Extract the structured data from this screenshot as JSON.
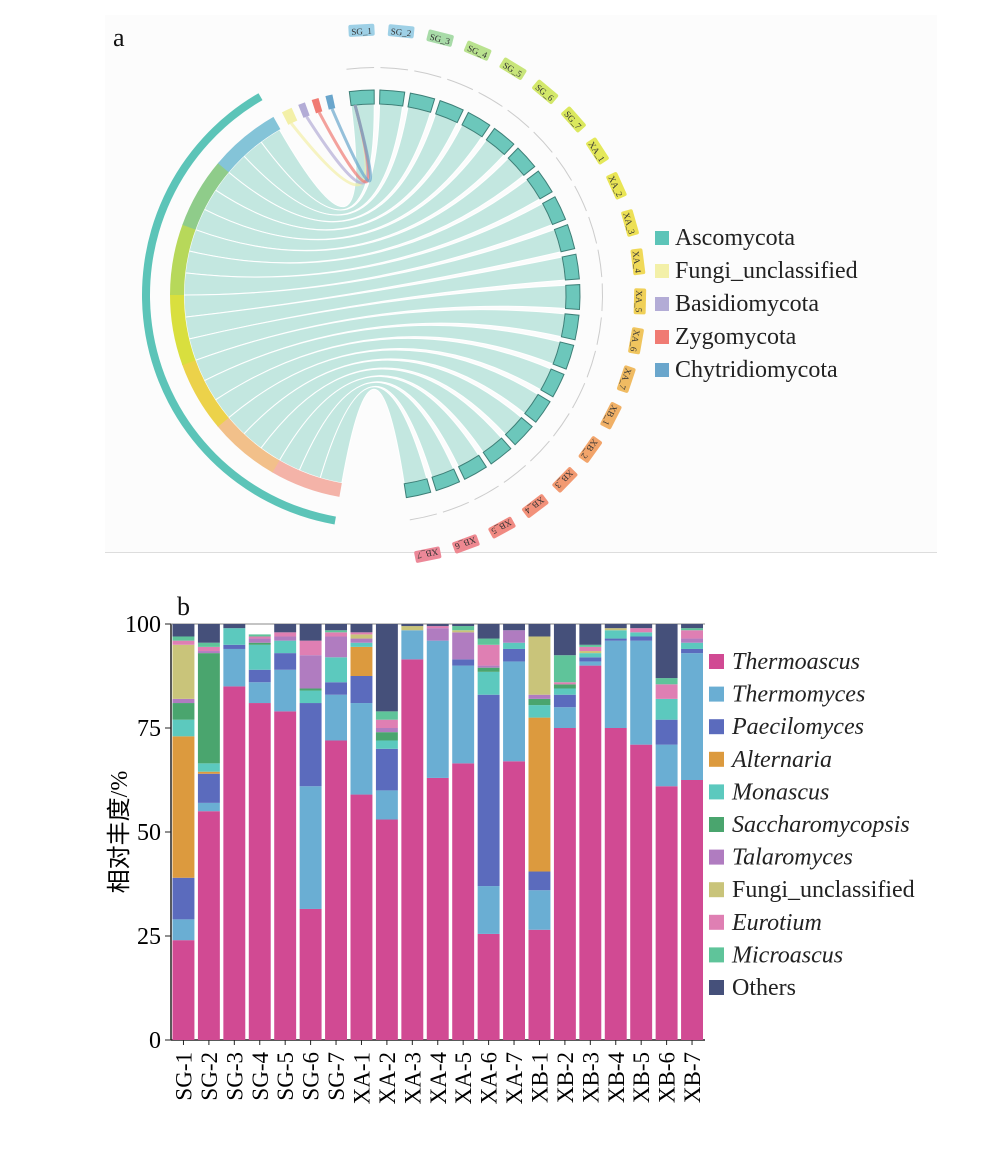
{
  "panel_a": {
    "label": "a",
    "samples": [
      "SG_1",
      "SG_2",
      "SG_3",
      "SG_4",
      "SG_5",
      "SG_6",
      "SG_7",
      "XA_1",
      "XA_2",
      "XA_3",
      "XA_4",
      "XA_5",
      "XA_6",
      "XA_7",
      "XB_1",
      "XB_2",
      "XB_3",
      "XB_4",
      "XB_5",
      "XB_6",
      "XB_7"
    ],
    "legend": [
      {
        "name": "Ascomycota",
        "color": "#5cc4b8"
      },
      {
        "name": "Fungi_unclassified",
        "color": "#f3f0a8"
      },
      {
        "name": "Basidiomycota",
        "color": "#b3acd6"
      },
      {
        "name": "Zygomycota",
        "color": "#f07b73"
      },
      {
        "name": "Chytridiomycota",
        "color": "#6aa6cc"
      }
    ]
  },
  "chart_data": {
    "type": "bar",
    "stacked": true,
    "panel_label": "b",
    "ylabel": "相对丰度/%",
    "ylim": [
      0,
      100
    ],
    "yticks": [
      0,
      25,
      50,
      75,
      100
    ],
    "legend_placement": "right",
    "categories": [
      "SG-1",
      "SG-2",
      "SG-3",
      "SG-4",
      "SG-5",
      "SG-6",
      "SG-7",
      "XA-1",
      "XA-2",
      "XA-3",
      "XA-4",
      "XA-5",
      "XA-6",
      "XA-7",
      "XB-1",
      "XB-2",
      "XB-3",
      "XB-4",
      "XB-5",
      "XB-6",
      "XB-7"
    ],
    "series": [
      {
        "name": "Thermoascus",
        "italic": true,
        "color": "#d14a93",
        "values": [
          24,
          55,
          85,
          81,
          79,
          31.5,
          72,
          59,
          53,
          91.5,
          63,
          66.5,
          25.5,
          67,
          26.5,
          75,
          90,
          75,
          71,
          61,
          62.5
        ]
      },
      {
        "name": "Thermomyces",
        "italic": true,
        "color": "#6aaed3",
        "values": [
          5,
          2,
          9,
          5,
          10,
          29.5,
          11,
          22,
          7,
          7,
          33,
          23.5,
          11.5,
          24,
          9.5,
          5,
          1,
          21,
          25,
          10,
          30.5
        ]
      },
      {
        "name": "Paecilomyces",
        "italic": true,
        "color": "#5b6bbd",
        "values": [
          10,
          7,
          1,
          3,
          4,
          20,
          3,
          6.5,
          10,
          0,
          0,
          1.5,
          46,
          3,
          4.5,
          3,
          1,
          0.5,
          1,
          6,
          1
        ]
      },
      {
        "name": "Alternaria",
        "italic": true,
        "color": "#dc9a3e",
        "values": [
          34,
          0.5,
          0,
          0,
          0,
          0,
          0,
          7,
          0,
          0,
          0,
          0,
          0,
          0,
          37,
          0,
          0,
          0,
          0,
          0,
          0
        ]
      },
      {
        "name": "Monascus",
        "italic": true,
        "color": "#5cc9be",
        "values": [
          4,
          2,
          4,
          6,
          3,
          3,
          6,
          1,
          2,
          0,
          0,
          0,
          5.5,
          1.5,
          3,
          1.5,
          1,
          2,
          1,
          5,
          1.5
        ]
      },
      {
        "name": "Saccharomycopsis",
        "italic": true,
        "color": "#4aa56e",
        "values": [
          4,
          26.5,
          0,
          0.5,
          0,
          0.5,
          0,
          0,
          2,
          0,
          0,
          0,
          1,
          0,
          1.5,
          1,
          0,
          0,
          0,
          0,
          0
        ]
      },
      {
        "name": "Talaromyces",
        "italic": true,
        "color": "#b07cc0",
        "values": [
          1,
          0.5,
          0,
          1,
          1,
          8,
          5,
          1,
          1,
          0,
          3,
          6.5,
          0.5,
          3,
          1,
          0,
          0,
          0,
          0,
          0,
          1
        ]
      },
      {
        "name": "Fungi_unclassified",
        "italic": false,
        "color": "#c9c47a",
        "values": [
          13,
          0,
          0,
          0,
          0,
          0,
          0,
          1,
          0,
          1,
          0,
          0.5,
          0,
          0,
          14,
          0,
          0.5,
          0.5,
          0,
          0,
          0
        ]
      },
      {
        "name": "Eurotium",
        "italic": true,
        "color": "#df7fb3",
        "values": [
          1,
          1,
          0,
          0.5,
          1,
          3.5,
          1,
          0.5,
          2,
          0,
          0.5,
          0,
          5,
          0,
          0,
          0.5,
          1,
          0,
          1,
          3.5,
          2
        ]
      },
      {
        "name": "Microascus",
        "italic": true,
        "color": "#5fc49a",
        "values": [
          1,
          1,
          0,
          0.5,
          0,
          0,
          0.5,
          0,
          2,
          0,
          0,
          1,
          1.5,
          0,
          0,
          6.5,
          0.5,
          0,
          0,
          1.5,
          0.5
        ]
      },
      {
        "name": "Others",
        "italic": false,
        "color": "#45507a",
        "values": [
          3,
          4.5,
          1,
          0,
          2,
          4,
          1.5,
          2,
          21,
          0.5,
          0.5,
          0.5,
          3.5,
          1.5,
          3,
          7.5,
          5,
          1,
          1,
          13,
          1
        ]
      }
    ]
  }
}
